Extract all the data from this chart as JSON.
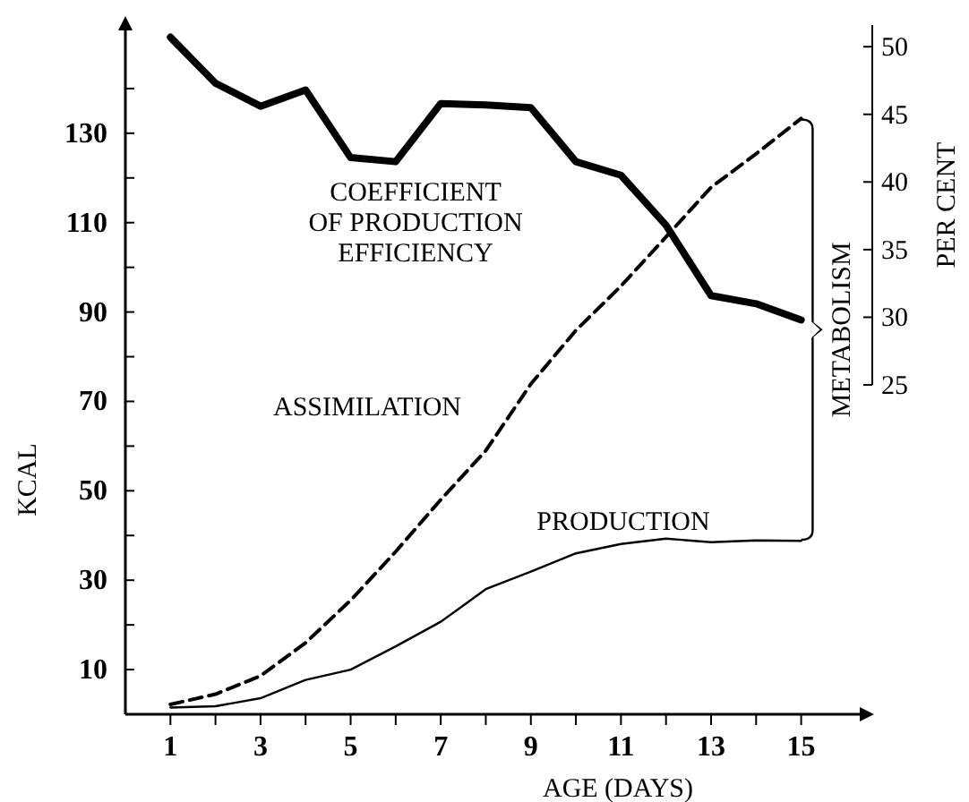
{
  "chart_data": {
    "type": "line",
    "xlabel": "AGE (DAYS)",
    "ylabel": "KCAL",
    "y2label": "PER CENT",
    "x": [
      1,
      2,
      3,
      4,
      5,
      6,
      7,
      8,
      9,
      10,
      11,
      12,
      13,
      14,
      15
    ],
    "xlim": [
      0,
      16.3
    ],
    "xticks": [
      1,
      {
        "value": 2,
        "label": null
      },
      3,
      {
        "value": 4,
        "label": null
      },
      5,
      {
        "value": 6,
        "label": null
      },
      7,
      {
        "value": 8,
        "label": null
      },
      9,
      {
        "value": 10,
        "label": null
      },
      11,
      {
        "value": 12,
        "label": null
      },
      13,
      {
        "value": 14,
        "label": null
      },
      15
    ],
    "ylim": [
      0,
      153
    ],
    "yticks": [
      10,
      {
        "value": 20,
        "label": null
      },
      30,
      {
        "value": 40,
        "label": null
      },
      50,
      {
        "value": 60,
        "label": null
      },
      70,
      {
        "value": 80,
        "label": null
      },
      90,
      {
        "value": 100,
        "label": null
      },
      110,
      {
        "value": 120,
        "label": null
      },
      130,
      {
        "value": 140,
        "label": null
      }
    ],
    "y2lim": [
      25,
      51.6
    ],
    "y2ticks": [
      25,
      30,
      35,
      40,
      45,
      50
    ],
    "series": [
      {
        "name": "COEFFICIENT OF PRODUCTION EFFICIENCY",
        "color": "#000000",
        "axis": "y2",
        "line_style": "solid",
        "values": [
          50.7,
          47.3,
          45.6,
          46.8,
          41.8,
          41.5,
          45.8,
          45.7,
          45.5,
          41.5,
          40.5,
          36.8,
          31.6,
          31.0,
          29.8
        ]
      },
      {
        "name": "ASSIMILATION",
        "color": "#000000",
        "line_style": "dashed",
        "values": [
          2.2,
          4.5,
          8.6,
          16,
          25.5,
          36.4,
          48,
          59,
          73.9,
          85.9,
          95.8,
          106.8,
          117.9,
          125.4,
          133.3
        ]
      },
      {
        "name": "PRODUCTION",
        "color": "#000000",
        "line_style": "solid",
        "values": [
          1.5,
          1.8,
          3.6,
          7.7,
          10,
          15.2,
          20.7,
          28,
          31.9,
          36,
          38.1,
          39.3,
          38.5,
          38.9,
          38.8
        ]
      }
    ],
    "annotations": [
      "METABOLISM"
    ],
    "grid": false,
    "marker": "none"
  }
}
